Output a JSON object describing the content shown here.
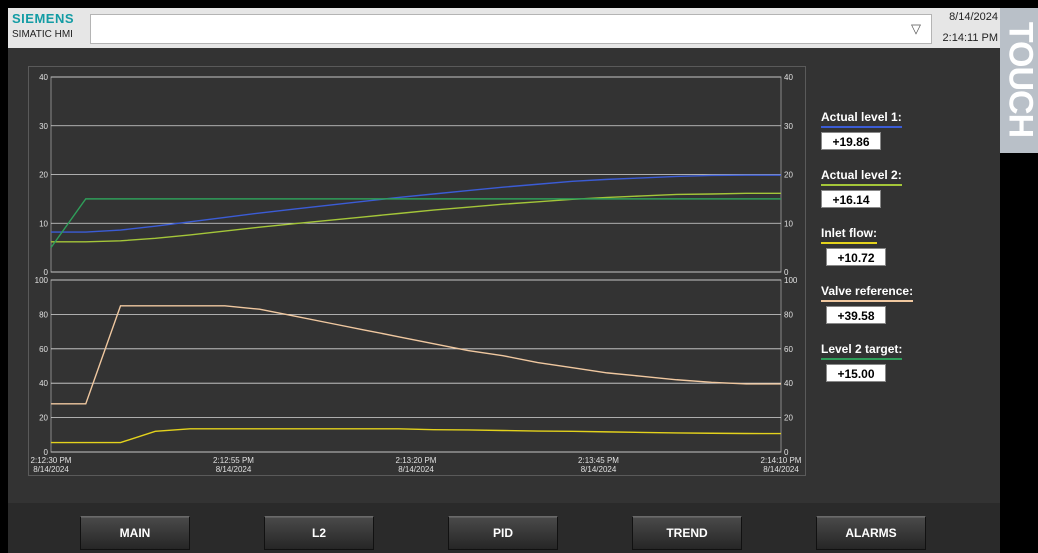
{
  "header": {
    "brand": "SIEMENS",
    "product": "SIMATIC HMI",
    "message_bar_value": "",
    "dropdown_icon": "triangle-down-icon",
    "date": "8/14/2024",
    "time": "2:14:11 PM"
  },
  "side_strip": {
    "text": "TOUCH"
  },
  "legend": [
    {
      "label": "Actual level 1:",
      "value": "+19.86",
      "color": "#3b5cd6"
    },
    {
      "label": "Actual level 2:",
      "value": "+16.14",
      "color": "#a4c639"
    },
    {
      "label": "Inlet flow:",
      "value": "+10.72",
      "color": "#e3d21c"
    },
    {
      "label": "Valve reference:",
      "value": "+39.58",
      "color": "#f0c8a0"
    },
    {
      "label": "Level 2 target:",
      "value": "+15.00",
      "color": "#2f9e5a"
    }
  ],
  "nav": [
    "MAIN",
    "L2",
    "PID",
    "TREND",
    "ALARMS"
  ],
  "chart_data": [
    {
      "type": "line",
      "ylim": [
        0,
        40
      ],
      "yticks": [
        "0",
        "10",
        "20",
        "30",
        "40"
      ],
      "x_points": [
        "2:12:30 PM",
        "2:12:35 PM",
        "2:12:40 PM",
        "2:12:45 PM",
        "2:12:50 PM",
        "2:12:55 PM",
        "2:13:00 PM",
        "2:13:05 PM",
        "2:13:10 PM",
        "2:13:15 PM",
        "2:13:20 PM",
        "2:13:25 PM",
        "2:13:30 PM",
        "2:13:35 PM",
        "2:13:40 PM",
        "2:13:45 PM",
        "2:13:50 PM",
        "2:13:55 PM",
        "2:14:00 PM",
        "2:14:05 PM",
        "2:14:10 PM",
        "2:14:13 PM"
      ],
      "series": [
        {
          "color": "#3b5cd6",
          "values": [
            8.2,
            8.2,
            8.6,
            9.4,
            10.3,
            11.2,
            12.1,
            12.9,
            13.7,
            14.5,
            15.3,
            16.0,
            16.7,
            17.4,
            18.0,
            18.6,
            19.0,
            19.3,
            19.6,
            19.8,
            19.86,
            19.86
          ]
        },
        {
          "color": "#a4c639",
          "values": [
            6.2,
            6.2,
            6.4,
            6.9,
            7.6,
            8.4,
            9.2,
            9.9,
            10.6,
            11.3,
            12.0,
            12.7,
            13.3,
            13.9,
            14.4,
            14.9,
            15.3,
            15.6,
            15.9,
            16.0,
            16.14,
            16.14
          ]
        },
        {
          "color": "#2f9e5a",
          "values": [
            5,
            15,
            15,
            15,
            15,
            15,
            15,
            15,
            15,
            15,
            15,
            15,
            15,
            15,
            15,
            15,
            15,
            15,
            15,
            15,
            15,
            15
          ]
        }
      ]
    },
    {
      "type": "line",
      "ylim": [
        0,
        100
      ],
      "yticks": [
        "0",
        "20",
        "40",
        "60",
        "80",
        "100"
      ],
      "x_points": [
        "2:12:30 PM",
        "2:12:35 PM",
        "2:12:40 PM",
        "2:12:45 PM",
        "2:12:50 PM",
        "2:12:55 PM",
        "2:13:00 PM",
        "2:13:05 PM",
        "2:13:10 PM",
        "2:13:15 PM",
        "2:13:20 PM",
        "2:13:25 PM",
        "2:13:30 PM",
        "2:13:35 PM",
        "2:13:40 PM",
        "2:13:45 PM",
        "2:13:50 PM",
        "2:13:55 PM",
        "2:14:00 PM",
        "2:14:05 PM",
        "2:14:10 PM",
        "2:14:13 PM"
      ],
      "series": [
        {
          "color": "#f0c8a0",
          "values": [
            28,
            28,
            85,
            85,
            85,
            85,
            83,
            79,
            75,
            71,
            67,
            63,
            59,
            56,
            52,
            49,
            46,
            44,
            42,
            40.5,
            39.6,
            39.58
          ]
        },
        {
          "color": "#e3d21c",
          "values": [
            5.5,
            5.5,
            5.5,
            12,
            13.5,
            13.5,
            13.5,
            13.5,
            13.5,
            13.5,
            13.5,
            13,
            12.8,
            12.5,
            12.2,
            12.0,
            11.7,
            11.4,
            11.1,
            10.9,
            10.75,
            10.72
          ]
        }
      ]
    }
  ],
  "x_axis_labels": [
    {
      "time": "2:12:30 PM",
      "date": "8/14/2024"
    },
    {
      "time": "2:12:55 PM",
      "date": "8/14/2024"
    },
    {
      "time": "2:13:20 PM",
      "date": "8/14/2024"
    },
    {
      "time": "2:13:45 PM",
      "date": "8/14/2024"
    },
    {
      "time": "2:14:10 PM",
      "date": "8/14/2024"
    }
  ]
}
